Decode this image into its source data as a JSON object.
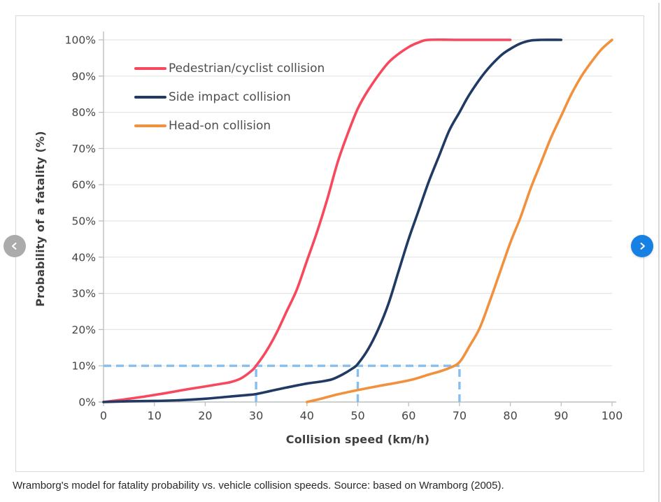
{
  "caption": "Wramborg's model for fatality probability vs. vehicle collision speeds. Source: based on Wramborg (2005).",
  "carousel": {
    "prev_icon": "chevron-left",
    "next_icon": "chevron-right"
  },
  "colors": {
    "prev_button": "#ababab",
    "next_button": "#1681e2",
    "nav_chevron": "#ffffff",
    "card_border": "#d6d9d6",
    "grid": "#e3e6e3",
    "axis": "#bcc0bd",
    "tick_text": "#454545",
    "axis_title_text": "#3f3f3f",
    "legend_text": "#4e4e4e",
    "caption_text": "#26282b",
    "guide_blue": "#87beef"
  },
  "chart_data": {
    "type": "line",
    "title": "",
    "xlabel": "Collision speed (km/h)",
    "ylabel": "Probability of a fatality (%)",
    "xlim": [
      0,
      100
    ],
    "ylim": [
      0,
      100
    ],
    "grid": "horizontal-only",
    "legend_position": "top-left-inside",
    "x_ticks": [
      "0",
      "10",
      "20",
      "30",
      "40",
      "50",
      "60",
      "70",
      "80",
      "90",
      "100"
    ],
    "y_ticks": [
      "0%",
      "10%",
      "20%",
      "30%",
      "40%",
      "50%",
      "60%",
      "70%",
      "80%",
      "90%",
      "100%"
    ],
    "series": [
      {
        "name": "Pedestrian/cyclist collision",
        "color": "#f8485e",
        "points": [
          [
            0,
            0
          ],
          [
            4,
            0.7
          ],
          [
            8,
            1.5
          ],
          [
            12,
            2.4
          ],
          [
            16,
            3.4
          ],
          [
            20,
            4.3
          ],
          [
            23,
            5
          ],
          [
            25,
            5.5
          ],
          [
            27,
            6.5
          ],
          [
            29,
            8.5
          ],
          [
            30,
            10
          ],
          [
            32,
            14
          ],
          [
            34,
            19
          ],
          [
            36,
            25
          ],
          [
            38,
            31
          ],
          [
            40,
            39
          ],
          [
            42,
            47
          ],
          [
            44,
            56
          ],
          [
            46,
            66
          ],
          [
            48,
            74
          ],
          [
            50,
            81
          ],
          [
            52,
            86
          ],
          [
            55,
            92
          ],
          [
            57,
            95
          ],
          [
            60,
            98
          ],
          [
            62,
            99.3
          ],
          [
            64,
            100
          ],
          [
            70,
            100
          ],
          [
            75,
            100
          ],
          [
            80,
            100
          ]
        ]
      },
      {
        "name": "Side impact collision",
        "color": "#203a63",
        "points": [
          [
            0,
            0
          ],
          [
            5,
            0.2
          ],
          [
            10,
            0.3
          ],
          [
            15,
            0.5
          ],
          [
            20,
            0.9
          ],
          [
            24,
            1.4
          ],
          [
            28,
            1.9
          ],
          [
            30,
            2.2
          ],
          [
            33,
            3.1
          ],
          [
            36,
            4
          ],
          [
            40,
            5.1
          ],
          [
            43,
            5.7
          ],
          [
            45,
            6.3
          ],
          [
            47,
            7.6
          ],
          [
            49,
            9.3
          ],
          [
            50,
            10.5
          ],
          [
            52,
            14.5
          ],
          [
            54,
            20
          ],
          [
            56,
            27
          ],
          [
            58,
            36
          ],
          [
            60,
            45
          ],
          [
            62,
            53
          ],
          [
            64,
            61
          ],
          [
            66,
            68
          ],
          [
            68,
            75
          ],
          [
            70,
            80
          ],
          [
            72,
            85
          ],
          [
            75,
            91
          ],
          [
            78,
            95.5
          ],
          [
            80,
            97.5
          ],
          [
            82,
            99
          ],
          [
            84,
            99.8
          ],
          [
            86,
            100
          ],
          [
            90,
            100
          ]
        ]
      },
      {
        "name": "Head-on collision",
        "color": "#f2913d",
        "points": [
          [
            40,
            0
          ],
          [
            43,
            1
          ],
          [
            46,
            2.1
          ],
          [
            50,
            3.3
          ],
          [
            54,
            4.4
          ],
          [
            58,
            5.4
          ],
          [
            61,
            6.3
          ],
          [
            64,
            7.6
          ],
          [
            66,
            8.4
          ],
          [
            68,
            9.4
          ],
          [
            70,
            11
          ],
          [
            72,
            15.5
          ],
          [
            74,
            20.5
          ],
          [
            76,
            28
          ],
          [
            78,
            36
          ],
          [
            80,
            44
          ],
          [
            82,
            51
          ],
          [
            84,
            59
          ],
          [
            86,
            66
          ],
          [
            88,
            73
          ],
          [
            90,
            79
          ],
          [
            92,
            85
          ],
          [
            94,
            90
          ],
          [
            96,
            94
          ],
          [
            98,
            97.5
          ],
          [
            100,
            100
          ]
        ]
      }
    ],
    "guides": {
      "description": "Light-blue dashed reference lines marking 10% fatality probability at 30, 50 and 70 km/h",
      "color": "#87beef",
      "horizontal": {
        "y": 10,
        "x_from": 0,
        "x_to": 70
      },
      "verticals": [
        {
          "x": 30,
          "y_from": 0,
          "y_to": 10
        },
        {
          "x": 50,
          "y_from": 0,
          "y_to": 10
        },
        {
          "x": 70,
          "y_from": 0,
          "y_to": 10
        }
      ]
    }
  }
}
